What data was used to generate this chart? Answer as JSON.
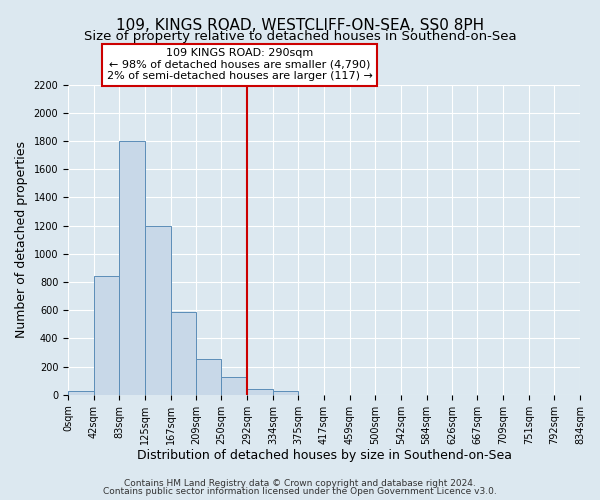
{
  "title": "109, KINGS ROAD, WESTCLIFF-ON-SEA, SS0 8PH",
  "subtitle": "Size of property relative to detached houses in Southend-on-Sea",
  "xlabel": "Distribution of detached houses by size in Southend-on-Sea",
  "ylabel": "Number of detached properties",
  "footnote1": "Contains HM Land Registry data © Crown copyright and database right 2024.",
  "footnote2": "Contains public sector information licensed under the Open Government Licence v3.0.",
  "bar_edges": [
    0,
    42,
    83,
    125,
    167,
    209,
    250,
    292,
    334,
    375,
    417,
    459,
    500,
    542,
    584,
    626,
    667,
    709,
    751,
    792,
    834
  ],
  "bar_heights": [
    25,
    840,
    1800,
    1200,
    590,
    255,
    125,
    40,
    25,
    0,
    0,
    0,
    0,
    0,
    0,
    0,
    0,
    0,
    0,
    0
  ],
  "bar_color": "#c8d8e8",
  "bar_edge_color": "#5b8db8",
  "vline_x": 292,
  "vline_color": "#cc0000",
  "annotation_title": "109 KINGS ROAD: 290sqm",
  "annotation_line1": "← 98% of detached houses are smaller (4,790)",
  "annotation_line2": "2% of semi-detached houses are larger (117) →",
  "annotation_box_color": "#ffffff",
  "annotation_box_edge": "#cc0000",
  "ylim": [
    0,
    2200
  ],
  "yticks": [
    0,
    200,
    400,
    600,
    800,
    1000,
    1200,
    1400,
    1600,
    1800,
    2000,
    2200
  ],
  "xtick_labels": [
    "0sqm",
    "42sqm",
    "83sqm",
    "125sqm",
    "167sqm",
    "209sqm",
    "250sqm",
    "292sqm",
    "334sqm",
    "375sqm",
    "417sqm",
    "459sqm",
    "500sqm",
    "542sqm",
    "584sqm",
    "626sqm",
    "667sqm",
    "709sqm",
    "751sqm",
    "792sqm",
    "834sqm"
  ],
  "background_color": "#dce8f0",
  "plot_bg_color": "#dce8f0",
  "grid_color": "#ffffff",
  "title_fontsize": 11,
  "subtitle_fontsize": 9.5,
  "axis_label_fontsize": 9,
  "tick_fontsize": 7,
  "annotation_fontsize": 8,
  "footnote_fontsize": 6.5
}
